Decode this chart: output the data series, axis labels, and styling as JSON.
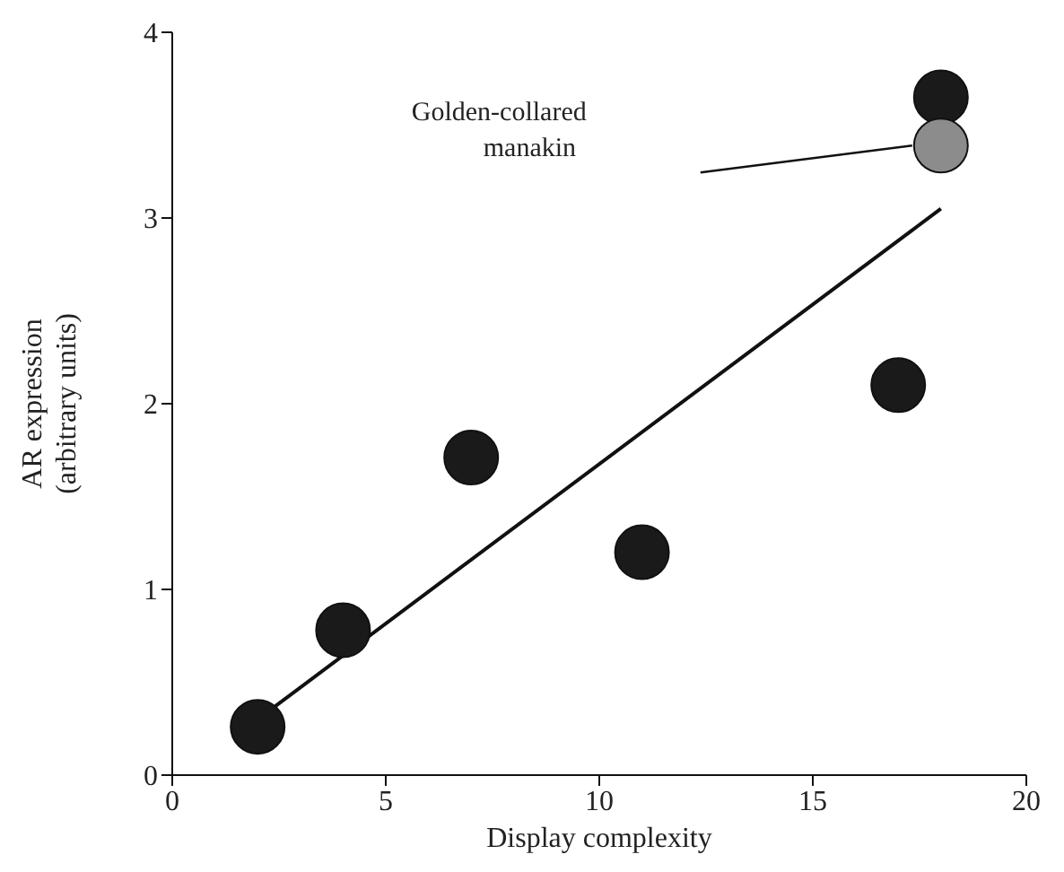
{
  "chart_data": {
    "type": "scatter",
    "xlabel": "Display complexity",
    "ylabel": "AR expression\n(arbitrary units)",
    "xlim": [
      0,
      20
    ],
    "xticks": [
      0,
      5,
      10,
      15,
      20
    ],
    "ylim": [
      0,
      4
    ],
    "yticks": [
      0,
      1,
      2,
      3,
      4
    ],
    "marker": "circle",
    "series": [
      {
        "type": "line",
        "marker": "none",
        "color": "#111111",
        "x": [
          2,
          18
        ],
        "values": [
          0.3,
          3.05
        ]
      },
      {
        "color": "#1a1a1a",
        "x": [
          2,
          4,
          7,
          11,
          17,
          18
        ],
        "values": [
          0.26,
          0.78,
          1.71,
          1.2,
          2.1,
          3.65
        ]
      },
      {
        "color": "#8c8c8c",
        "x": [
          18
        ],
        "values": [
          3.39
        ]
      }
    ],
    "annotations": [
      "Golden-collared\nmanakin"
    ]
  }
}
